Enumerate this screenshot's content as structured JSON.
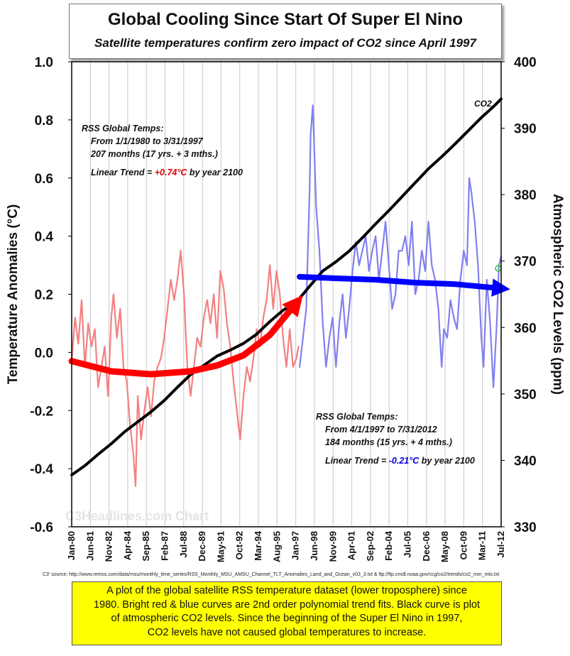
{
  "title": "Global Cooling Since Start Of Super El Nino",
  "subtitle": "Satellite temperatures confirm zero impact of CO2 since April 1997",
  "chart_data": {
    "type": "line",
    "x_unit": "month",
    "x_range": [
      "1980-01",
      "2012-07"
    ],
    "x_tick_labels": [
      "Jan-80",
      "Jun-81",
      "Nov-82",
      "Apr-84",
      "Sep-85",
      "Feb-87",
      "Jul-88",
      "Dec-89",
      "May-91",
      "Oct-92",
      "Mar-94",
      "Aug-95",
      "Jan-97",
      "Jun-98",
      "Nov-99",
      "Apr-01",
      "Sep-02",
      "Feb-04",
      "Jul-05",
      "Dec-06",
      "May-08",
      "Oct-09",
      "Mar-11",
      "Jul-12"
    ],
    "y_left": {
      "label": "Temperature Anomalies (°C)",
      "range": [
        -0.6,
        1.0
      ],
      "ticks": [
        "-0.6",
        "-0.4",
        "-0.2",
        "0.0",
        "0.2",
        "0.4",
        "0.6",
        "0.8",
        "1.0"
      ]
    },
    "y_right": {
      "label": "Atmospheric CO2 Levels (ppm)",
      "range": [
        330,
        400
      ],
      "ticks": [
        "330",
        "340",
        "350",
        "360",
        "370",
        "380",
        "390",
        "400"
      ]
    },
    "grid": "vertical",
    "series": [
      {
        "name": "RSS Global Temps 1980–Mar 1997",
        "axis": "left",
        "color": "#f48080",
        "points": [
          [
            "1980-01",
            -0.03
          ],
          [
            "1980-04",
            0.12
          ],
          [
            "1980-07",
            0.03
          ],
          [
            "1980-10",
            0.18
          ],
          [
            "1981-01",
            -0.05
          ],
          [
            "1981-04",
            0.1
          ],
          [
            "1981-07",
            0.02
          ],
          [
            "1981-10",
            0.08
          ],
          [
            "1982-01",
            -0.12
          ],
          [
            "1982-04",
            -0.05
          ],
          [
            "1982-07",
            0.02
          ],
          [
            "1982-10",
            -0.15
          ],
          [
            "1983-01",
            0.12
          ],
          [
            "1983-03",
            0.2
          ],
          [
            "1983-06",
            0.05
          ],
          [
            "1983-09",
            0.15
          ],
          [
            "1983-12",
            -0.05
          ],
          [
            "1984-03",
            -0.1
          ],
          [
            "1984-06",
            -0.25
          ],
          [
            "1984-09",
            -0.35
          ],
          [
            "1984-11",
            -0.46
          ],
          [
            "1985-01",
            -0.15
          ],
          [
            "1985-04",
            -0.3
          ],
          [
            "1985-07",
            -0.2
          ],
          [
            "1985-10",
            -0.12
          ],
          [
            "1986-01",
            -0.22
          ],
          [
            "1986-04",
            -0.1
          ],
          [
            "1986-07",
            -0.05
          ],
          [
            "1986-10",
            -0.02
          ],
          [
            "1987-01",
            0.05
          ],
          [
            "1987-04",
            0.15
          ],
          [
            "1987-07",
            0.25
          ],
          [
            "1987-10",
            0.18
          ],
          [
            "1988-01",
            0.25
          ],
          [
            "1988-04",
            0.35
          ],
          [
            "1988-07",
            0.2
          ],
          [
            "1988-10",
            -0.05
          ],
          [
            "1989-01",
            -0.15
          ],
          [
            "1989-04",
            -0.05
          ],
          [
            "1989-07",
            0.05
          ],
          [
            "1989-10",
            0.02
          ],
          [
            "1990-01",
            0.12
          ],
          [
            "1990-04",
            0.18
          ],
          [
            "1990-07",
            0.1
          ],
          [
            "1990-10",
            0.2
          ],
          [
            "1991-01",
            0.05
          ],
          [
            "1991-04",
            0.28
          ],
          [
            "1991-07",
            0.22
          ],
          [
            "1991-10",
            0.1
          ],
          [
            "1992-01",
            0.02
          ],
          [
            "1992-04",
            -0.1
          ],
          [
            "1992-07",
            -0.2
          ],
          [
            "1992-10",
            -0.3
          ],
          [
            "1993-01",
            -0.15
          ],
          [
            "1993-04",
            -0.05
          ],
          [
            "1993-07",
            -0.1
          ],
          [
            "1993-10",
            -0.02
          ],
          [
            "1994-01",
            0.08
          ],
          [
            "1994-04",
            0.02
          ],
          [
            "1994-07",
            0.12
          ],
          [
            "1994-10",
            0.18
          ],
          [
            "1995-01",
            0.3
          ],
          [
            "1995-04",
            0.15
          ],
          [
            "1995-07",
            0.28
          ],
          [
            "1995-10",
            0.2
          ],
          [
            "1996-01",
            0.05
          ],
          [
            "1996-04",
            -0.05
          ],
          [
            "1996-07",
            0.08
          ],
          [
            "1996-10",
            -0.05
          ],
          [
            "1997-01",
            -0.02
          ],
          [
            "1997-03",
            0.02
          ]
        ]
      },
      {
        "name": "RSS Global Temps Apr 1997–Jul 2012",
        "axis": "left",
        "color": "#8080f0",
        "points": [
          [
            "1997-04",
            -0.05
          ],
          [
            "1997-07",
            0.05
          ],
          [
            "1997-10",
            0.15
          ],
          [
            "1998-01",
            0.55
          ],
          [
            "1998-02",
            0.75
          ],
          [
            "1998-04",
            0.85
          ],
          [
            "1998-07",
            0.5
          ],
          [
            "1998-10",
            0.35
          ],
          [
            "1999-01",
            0.1
          ],
          [
            "1999-04",
            -0.05
          ],
          [
            "1999-07",
            0.05
          ],
          [
            "1999-10",
            0.12
          ],
          [
            "2000-01",
            -0.05
          ],
          [
            "2000-04",
            0.1
          ],
          [
            "2000-07",
            0.2
          ],
          [
            "2000-10",
            0.05
          ],
          [
            "2001-01",
            0.15
          ],
          [
            "2001-04",
            0.28
          ],
          [
            "2001-07",
            0.38
          ],
          [
            "2001-10",
            0.3
          ],
          [
            "2002-01",
            0.35
          ],
          [
            "2002-04",
            0.4
          ],
          [
            "2002-07",
            0.28
          ],
          [
            "2002-10",
            0.35
          ],
          [
            "2003-01",
            0.4
          ],
          [
            "2003-04",
            0.25
          ],
          [
            "2003-07",
            0.35
          ],
          [
            "2003-10",
            0.45
          ],
          [
            "2004-01",
            0.3
          ],
          [
            "2004-04",
            0.15
          ],
          [
            "2004-07",
            0.2
          ],
          [
            "2004-10",
            0.35
          ],
          [
            "2005-01",
            0.35
          ],
          [
            "2005-04",
            0.4
          ],
          [
            "2005-07",
            0.3
          ],
          [
            "2005-10",
            0.45
          ],
          [
            "2006-01",
            0.2
          ],
          [
            "2006-04",
            0.25
          ],
          [
            "2006-07",
            0.35
          ],
          [
            "2006-10",
            0.28
          ],
          [
            "2007-01",
            0.45
          ],
          [
            "2007-04",
            0.3
          ],
          [
            "2007-07",
            0.25
          ],
          [
            "2007-10",
            0.15
          ],
          [
            "2008-01",
            -0.05
          ],
          [
            "2008-03",
            0.08
          ],
          [
            "2008-06",
            0.05
          ],
          [
            "2008-09",
            0.18
          ],
          [
            "2008-12",
            0.12
          ],
          [
            "2009-03",
            0.08
          ],
          [
            "2009-06",
            0.25
          ],
          [
            "2009-09",
            0.35
          ],
          [
            "2009-12",
            0.3
          ],
          [
            "2010-02",
            0.6
          ],
          [
            "2010-04",
            0.55
          ],
          [
            "2010-07",
            0.45
          ],
          [
            "2010-10",
            0.3
          ],
          [
            "2011-01",
            0.05
          ],
          [
            "2011-03",
            -0.05
          ],
          [
            "2011-06",
            0.25
          ],
          [
            "2011-09",
            0.1
          ],
          [
            "2011-12",
            -0.12
          ],
          [
            "2012-03",
            0.1
          ],
          [
            "2012-05",
            0.3
          ],
          [
            "2012-07",
            0.33
          ]
        ]
      },
      {
        "name": "CO2",
        "axis": "right",
        "color": "#000000",
        "points": [
          [
            "1980-01",
            337.8
          ],
          [
            "1981-01",
            339.2
          ],
          [
            "1982-01",
            340.9
          ],
          [
            "1983-01",
            342.5
          ],
          [
            "1984-01",
            344.3
          ],
          [
            "1985-01",
            345.8
          ],
          [
            "1986-01",
            347.3
          ],
          [
            "1987-01",
            349.0
          ],
          [
            "1988-01",
            351.0
          ],
          [
            "1989-01",
            352.9
          ],
          [
            "1990-01",
            354.3
          ],
          [
            "1991-01",
            355.7
          ],
          [
            "1992-01",
            356.6
          ],
          [
            "1993-01",
            357.6
          ],
          [
            "1994-01",
            359.0
          ],
          [
            "1995-01",
            360.9
          ],
          [
            "1996-01",
            362.6
          ],
          [
            "1997-01",
            363.8
          ],
          [
            "1998-01",
            366.2
          ],
          [
            "1999-01",
            368.5
          ],
          [
            "2000-01",
            369.9
          ],
          [
            "2001-01",
            371.5
          ],
          [
            "2002-01",
            373.5
          ],
          [
            "2003-01",
            375.6
          ],
          [
            "2004-01",
            377.6
          ],
          [
            "2005-01",
            379.7
          ],
          [
            "2006-01",
            381.8
          ],
          [
            "2007-01",
            383.9
          ],
          [
            "2008-01",
            385.7
          ],
          [
            "2009-01",
            387.6
          ],
          [
            "2010-01",
            389.6
          ],
          [
            "2011-01",
            391.6
          ],
          [
            "2012-01",
            393.4
          ],
          [
            "2012-07",
            394.4
          ]
        ]
      },
      {
        "name": "2nd order polynomial fit 1980–1997",
        "axis": "left",
        "color": "#ff0000",
        "points": [
          [
            "1980-01",
            -0.03
          ],
          [
            "1983-01",
            -0.065
          ],
          [
            "1986-01",
            -0.075
          ],
          [
            "1989-01",
            -0.065
          ],
          [
            "1991-01",
            -0.045
          ],
          [
            "1993-01",
            -0.01
          ],
          [
            "1995-01",
            0.06
          ],
          [
            "1997-01",
            0.17
          ]
        ]
      },
      {
        "name": "2nd order polynomial fit 1997–2012",
        "axis": "left",
        "color": "#0000ff",
        "points": [
          [
            "1997-04",
            0.26
          ],
          [
            "2000-01",
            0.255
          ],
          [
            "2003-01",
            0.25
          ],
          [
            "2006-01",
            0.24
          ],
          [
            "2009-01",
            0.235
          ],
          [
            "2012-07",
            0.22
          ]
        ]
      }
    ],
    "annotations": {
      "co2_label": "CO2",
      "early": {
        "heading": "RSS Global Temps:",
        "period": "From 1/1/1980 to 3/31/1997",
        "months": "207 months (17 yrs. + 3 mths.)",
        "trend_prefix": "Linear Trend = ",
        "trend_value": "+0.74°C",
        "trend_suffix": " by year 2100",
        "trend_color": "#e00000"
      },
      "late": {
        "heading": "RSS Global Temps:",
        "period": "From 4/1/1997 to 7/31/2012",
        "months": "184 months (15 yrs. + 4 mths.)",
        "trend_prefix": "Linear Trend = ",
        "trend_value": "-0.21°C",
        "trend_suffix": " by year 2100",
        "trend_color": "#0000dd"
      },
      "watermark": "C3Headlines.com Chart"
    }
  },
  "source_note": "C3' source: http://www.remss.com/data/msu/monthly_time_series/RSS_Monthly_MSU_AMSU_Channel_TLT_Anomalies_Land_and_Ocean_v03_3.txt & ftp://ftp.cmdl.noaa.gov/ccg/co2/trends/co2_mm_mlo.txt",
  "caption": [
    "A plot of the global satellite RSS temperature dataset (lower troposphere) since",
    "1980. Bright red & blue curves are 2nd order polynomial trend fits. Black curve is plot",
    "of atmospheric CO2 levels. Since the beginning of the Super El Nino in 1997,",
    "CO2 levels have not caused global temperatures to increase."
  ]
}
